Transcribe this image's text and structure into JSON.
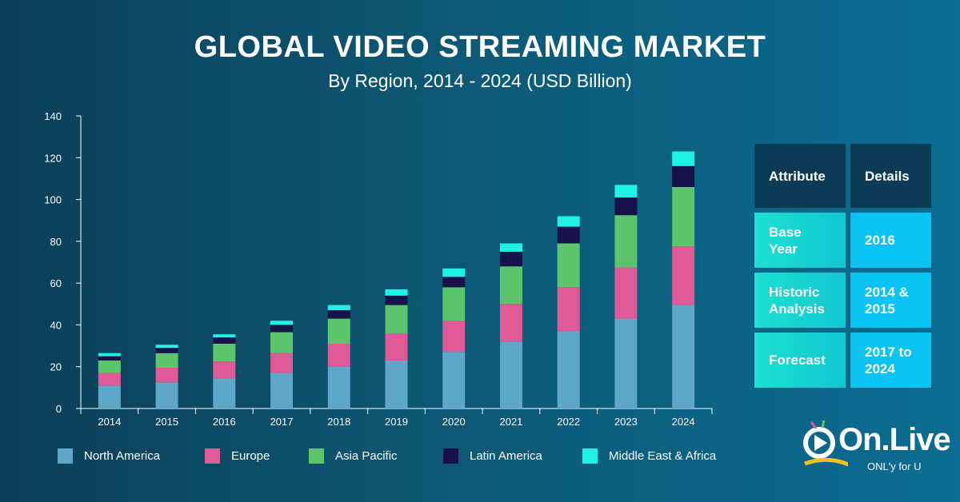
{
  "header": {
    "title": "GLOBAL VIDEO STREAMING MARKET",
    "subtitle": "By Region, 2014 - 2024 (USD Billion)"
  },
  "chart_data": {
    "type": "bar",
    "stacked": true,
    "categories": [
      "2014",
      "2015",
      "2016",
      "2017",
      "2018",
      "2019",
      "2020",
      "2021",
      "2022",
      "2023",
      "2024"
    ],
    "ylim": [
      0,
      140
    ],
    "yticks": [
      0,
      20,
      40,
      60,
      80,
      100,
      120,
      140
    ],
    "grid": false,
    "legend_position": "bottom",
    "series": [
      {
        "name": "North America",
        "color": "#5ea7c8",
        "values": [
          11,
          12.5,
          14.5,
          17,
          20,
          23,
          27,
          32,
          37,
          43,
          49.5
        ]
      },
      {
        "name": "Europe",
        "color": "#e05a98",
        "values": [
          6,
          7,
          8,
          9.5,
          11,
          13,
          15,
          18,
          21,
          24.5,
          28
        ]
      },
      {
        "name": "Asia Pacific",
        "color": "#5cc46b",
        "values": [
          6,
          7,
          8.5,
          10,
          12,
          13.5,
          16,
          18,
          21,
          25,
          28.5
        ]
      },
      {
        "name": "Latin America",
        "color": "#17124a",
        "values": [
          2,
          2.5,
          3,
          3.5,
          4,
          4.5,
          5,
          7,
          8,
          8.5,
          10
        ]
      },
      {
        "name": "Middle East & Africa",
        "color": "#1ff2e4",
        "values": [
          1.5,
          1.5,
          1.5,
          2,
          2.5,
          3,
          4,
          4,
          5,
          6,
          7
        ]
      }
    ]
  },
  "attribute_table": {
    "header": {
      "attribute": "Attribute",
      "details": "Details"
    },
    "rows": [
      {
        "attribute": "Base Year",
        "details": "2016"
      },
      {
        "attribute": "Historic Analysis",
        "details": "2014 & 2015"
      },
      {
        "attribute": "Forecast",
        "details": "2017 to 2024"
      }
    ]
  },
  "logo": {
    "name": "On.Live",
    "tagline": "ONL'y for U"
  }
}
